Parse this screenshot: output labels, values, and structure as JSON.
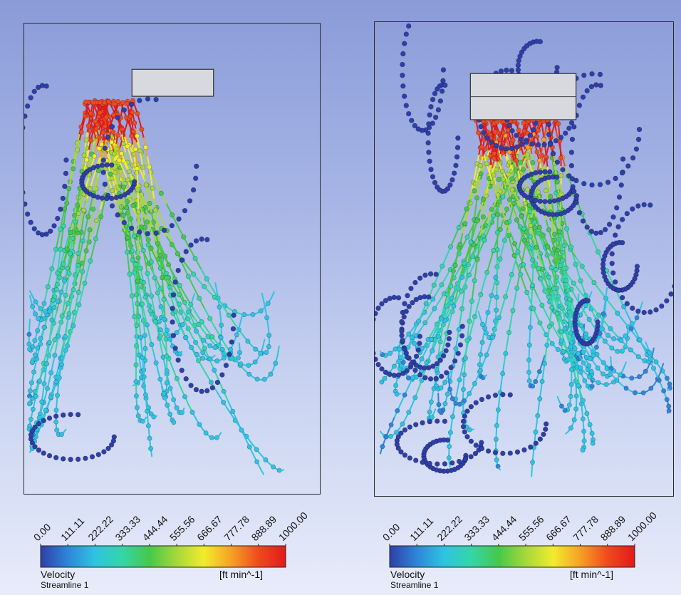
{
  "legends": [
    {
      "variable": "Velocity",
      "units": "[ft min^-1]",
      "object": "Streamline 1",
      "ticks": [
        "0.00",
        "111.11",
        "222.22",
        "333.33",
        "444.44",
        "555.56",
        "666.67",
        "777.78",
        "888.89",
        "1000.00"
      ]
    },
    {
      "variable": "Velocity",
      "units": "[ft min^-1]",
      "object": "Streamline 1",
      "ticks": [
        "0.00",
        "111.11",
        "222.22",
        "333.33",
        "444.44",
        "555.56",
        "666.67",
        "777.78",
        "888.89",
        "1000.00"
      ]
    }
  ],
  "colormap": [
    "#2f3fa8",
    "#2e86d8",
    "#2ec4e0",
    "#34d6a8",
    "#46c84a",
    "#a6d83a",
    "#f2ec2a",
    "#f7a025",
    "#f04a1e",
    "#e11a1a"
  ],
  "panel_background": [
    "#8a9bd8",
    "#e8ecfa"
  ],
  "diffuser_color": "#d7d9de"
}
